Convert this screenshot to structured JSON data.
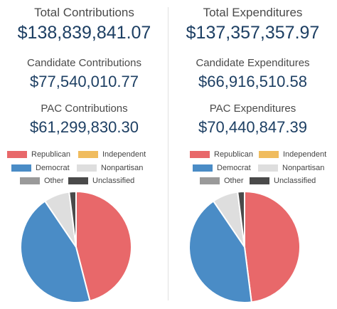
{
  "panels": [
    {
      "total_label": "Total Contributions",
      "total_value": "$138,839,841.07",
      "candidate_label": "Candidate Contributions",
      "candidate_value": "$77,540,010.77",
      "pac_label": "PAC Contributions",
      "pac_value": "$61,299,830.30"
    },
    {
      "total_label": "Total Expenditures",
      "total_value": "$137,357,357.97",
      "candidate_label": "Candidate Expenditures",
      "candidate_value": "$66,916,510.58",
      "pac_label": "PAC Expenditures",
      "pac_value": "$70,440,847.39"
    }
  ],
  "legend": [
    {
      "label": "Republican",
      "color": "#e8686a"
    },
    {
      "label": "Independent",
      "color": "#f0bc5e"
    },
    {
      "label": "Democrat",
      "color": "#4a8cc6"
    },
    {
      "label": "Nonpartisan",
      "color": "#dedede"
    },
    {
      "label": "Other",
      "color": "#9a9a9a"
    },
    {
      "label": "Unclassified",
      "color": "#4a4a4a"
    }
  ],
  "chart_data": [
    {
      "type": "pie",
      "categories": [
        "Republican",
        "Independent",
        "Democrat",
        "Nonpartisan",
        "Other",
        "Unclassified"
      ],
      "values": [
        46.0,
        0,
        44.5,
        7.5,
        0,
        2.0
      ],
      "colors": [
        "#e8686a",
        "#f0bc5e",
        "#4a8cc6",
        "#dedede",
        "#9a9a9a",
        "#4a4a4a"
      ]
    },
    {
      "type": "pie",
      "categories": [
        "Republican",
        "Independent",
        "Democrat",
        "Nonpartisan",
        "Other",
        "Unclassified"
      ],
      "values": [
        48.0,
        0,
        42.5,
        7.5,
        0,
        2.0
      ],
      "colors": [
        "#e8686a",
        "#f0bc5e",
        "#4a8cc6",
        "#dedede",
        "#9a9a9a",
        "#4a4a4a"
      ]
    }
  ]
}
